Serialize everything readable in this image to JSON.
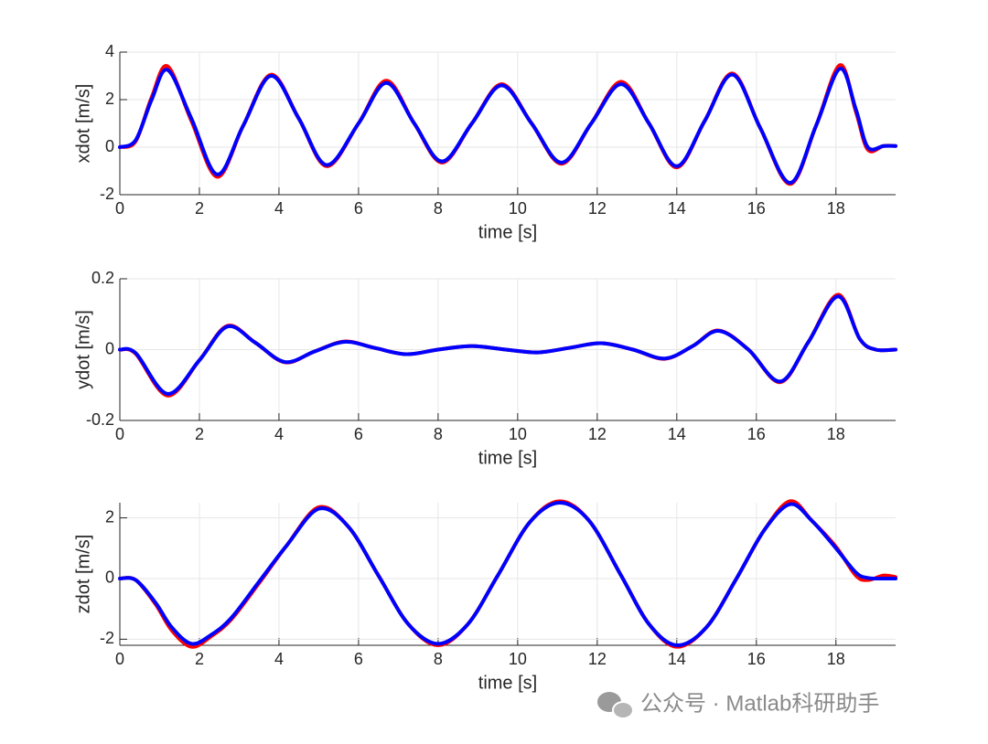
{
  "chart_data": [
    {
      "type": "line",
      "x_label": "time [s]",
      "y_label": "xdot [m/s]",
      "xlim": [
        0,
        19.5
      ],
      "xticks": [
        0,
        2,
        4,
        6,
        8,
        10,
        12,
        14,
        16,
        18
      ],
      "ylim": [
        -2,
        4
      ],
      "yticks": [
        -2,
        0,
        2,
        4
      ],
      "grid": true,
      "x": [
        0,
        0.4,
        0.8,
        1.2,
        1.8,
        2.45,
        3.1,
        3.8,
        4.5,
        5.2,
        6.0,
        6.7,
        7.4,
        8.1,
        8.85,
        9.6,
        10.35,
        11.1,
        11.85,
        12.6,
        13.3,
        14.0,
        14.7,
        15.4,
        16.1,
        16.85,
        17.5,
        18.1,
        18.5,
        18.8,
        19.2,
        19.5
      ],
      "series": [
        {
          "color": "#ff0000",
          "values": [
            0,
            0.25,
            2.1,
            3.4,
            1.1,
            -1.25,
            0.9,
            3.05,
            1.2,
            -0.8,
            1.0,
            2.8,
            1.0,
            -0.65,
            1.0,
            2.65,
            1.0,
            -0.7,
            1.0,
            2.75,
            1.0,
            -0.85,
            1.1,
            3.1,
            0.8,
            -1.55,
            0.9,
            3.45,
            1.5,
            -0.1,
            0.05,
            0.05
          ]
        },
        {
          "color": "#0000ff",
          "values": [
            0,
            0.3,
            2.0,
            3.25,
            1.2,
            -1.15,
            0.9,
            3.0,
            1.2,
            -0.75,
            1.0,
            2.7,
            1.0,
            -0.6,
            1.0,
            2.6,
            1.0,
            -0.65,
            1.0,
            2.65,
            1.0,
            -0.8,
            1.1,
            3.05,
            0.8,
            -1.5,
            0.9,
            3.3,
            1.6,
            0.0,
            0.05,
            0.05
          ]
        }
      ]
    },
    {
      "type": "line",
      "x_label": "time [s]",
      "y_label": "ydot [m/s]",
      "xlim": [
        0,
        19.5
      ],
      "xticks": [
        0,
        2,
        4,
        6,
        8,
        10,
        12,
        14,
        16,
        18
      ],
      "ylim": [
        -0.2,
        0.2
      ],
      "yticks": [
        -0.2,
        0,
        0.2
      ],
      "grid": true,
      "x": [
        0,
        0.4,
        1.2,
        2.0,
        2.7,
        3.4,
        4.15,
        4.9,
        5.65,
        6.4,
        7.2,
        8.0,
        8.85,
        9.7,
        10.5,
        11.3,
        12.1,
        12.9,
        13.7,
        14.4,
        15.05,
        15.8,
        16.6,
        17.3,
        18.05,
        18.6,
        19.0,
        19.5
      ],
      "series": [
        {
          "color": "#ff0000",
          "values": [
            0,
            -0.012,
            -0.13,
            -0.03,
            0.067,
            0.02,
            -0.036,
            -0.005,
            0.023,
            0.005,
            -0.013,
            0.0,
            0.01,
            0.0,
            -0.008,
            0.005,
            0.018,
            0.0,
            -0.026,
            0.01,
            0.054,
            0.0,
            -0.092,
            0.02,
            0.155,
            0.03,
            0.0,
            0.0
          ]
        },
        {
          "color": "#0000ff",
          "values": [
            0,
            -0.01,
            -0.125,
            -0.03,
            0.065,
            0.02,
            -0.035,
            -0.005,
            0.022,
            0.005,
            -0.013,
            0.0,
            0.01,
            0.0,
            -0.008,
            0.005,
            0.018,
            0.0,
            -0.025,
            0.01,
            0.053,
            0.0,
            -0.09,
            0.02,
            0.15,
            0.03,
            0.0,
            0.0
          ]
        }
      ]
    },
    {
      "type": "line",
      "x_label": "time [s]",
      "y_label": "zdot [m/s]",
      "xlim": [
        0,
        19.5
      ],
      "xticks": [
        0,
        2,
        4,
        6,
        8,
        10,
        12,
        14,
        16,
        18
      ],
      "ylim": [
        -2.2,
        2.5
      ],
      "yticks": [
        -2,
        0,
        2
      ],
      "grid": true,
      "x": [
        0,
        0.4,
        0.9,
        1.3,
        1.8,
        2.3,
        2.8,
        3.5,
        4.2,
        5.0,
        5.75,
        6.5,
        7.25,
        8.0,
        8.75,
        9.5,
        10.3,
        11.05,
        11.8,
        12.6,
        13.3,
        14.0,
        14.75,
        15.5,
        16.2,
        16.85,
        17.4,
        18.0,
        18.5,
        18.8,
        19.2,
        19.5
      ],
      "series": [
        {
          "color": "#ff0000",
          "values": [
            0,
            -0.05,
            -0.85,
            -1.7,
            -2.25,
            -1.9,
            -1.35,
            -0.15,
            1.1,
            2.35,
            1.7,
            0.1,
            -1.5,
            -2.2,
            -1.5,
            0.1,
            1.85,
            2.55,
            1.9,
            0.1,
            -1.5,
            -2.25,
            -1.6,
            0.0,
            1.6,
            2.55,
            1.9,
            1.05,
            0.1,
            -0.05,
            0.1,
            0.05
          ]
        },
        {
          "color": "#0000ff",
          "values": [
            0,
            -0.05,
            -0.8,
            -1.6,
            -2.15,
            -1.85,
            -1.3,
            -0.1,
            1.1,
            2.3,
            1.7,
            0.1,
            -1.5,
            -2.15,
            -1.5,
            0.1,
            1.85,
            2.5,
            1.9,
            0.1,
            -1.5,
            -2.2,
            -1.6,
            0.0,
            1.6,
            2.45,
            1.9,
            1.0,
            0.2,
            0.02,
            0.0,
            0.0
          ]
        }
      ]
    }
  ],
  "watermark": "公众号 · Matlab科研助手"
}
